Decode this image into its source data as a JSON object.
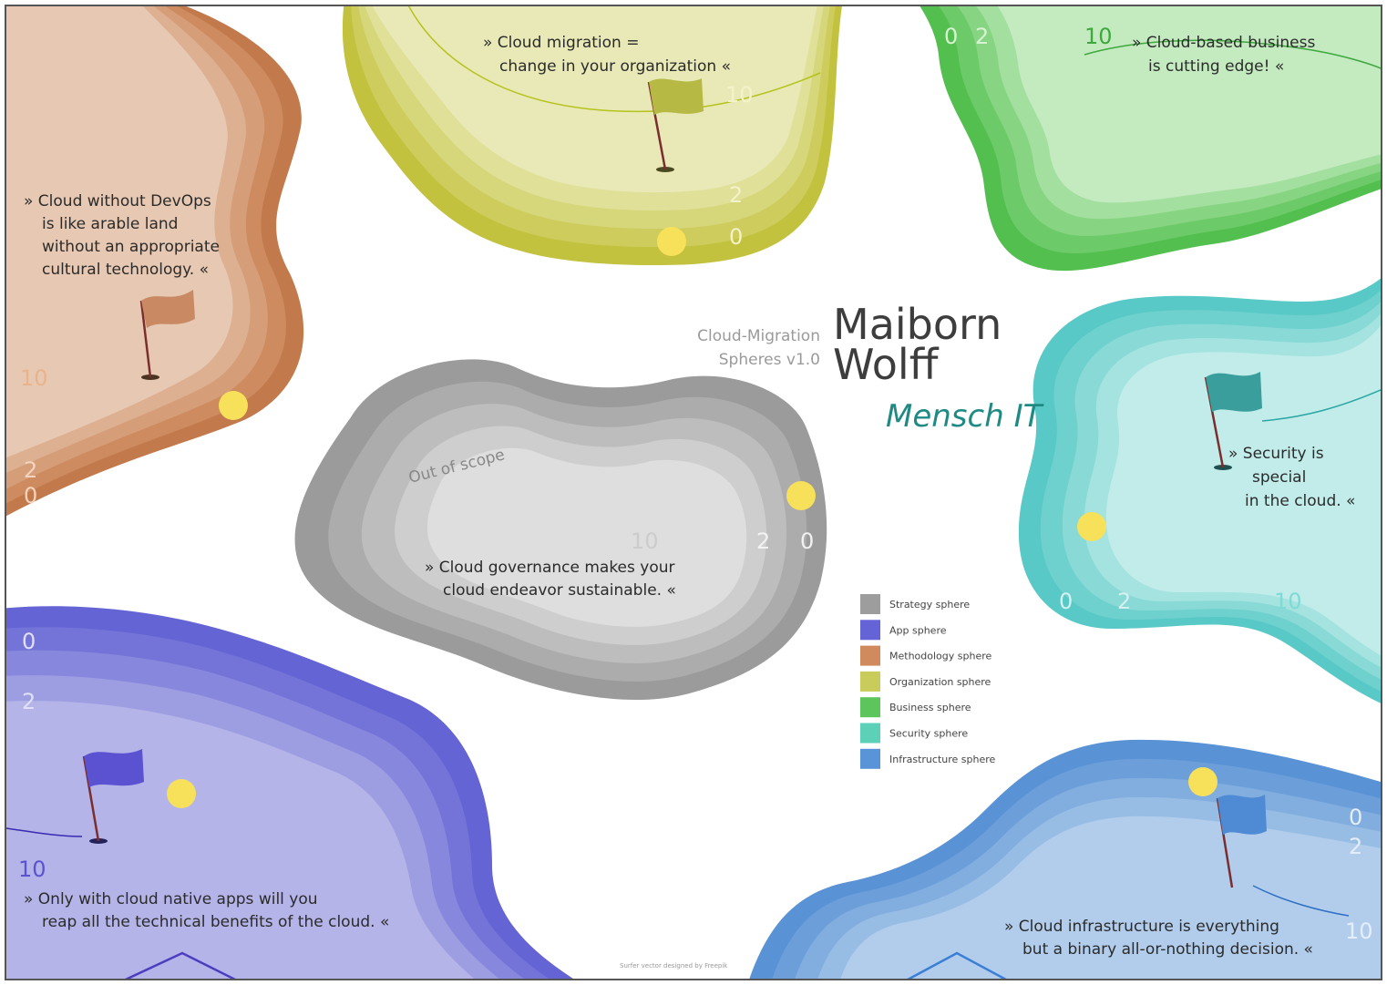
{
  "title": {
    "sub_line1": "Cloud-Migration",
    "sub_line2": "Spheres v1.0",
    "brand_line1": "Maiborn",
    "brand_line2": "Wolff",
    "tagline": "Mensch IT"
  },
  "spheres": {
    "methodology": {
      "color": "#c8845a",
      "quote": [
        "» Cloud without DevOps",
        "is like arable land",
        "without an appropriate",
        "cultural technology.  «"
      ],
      "labels": [
        "10",
        "2",
        "0"
      ]
    },
    "organization": {
      "color": "#c2c940",
      "quote": [
        "» Cloud migration =",
        "change in your organization    «"
      ],
      "labels": [
        "10",
        "2",
        "0"
      ]
    },
    "business": {
      "color": "#55c255",
      "quote": [
        "» Cloud-based business",
        "is cutting edge!  «"
      ],
      "labels": [
        "0",
        "2",
        "10"
      ]
    },
    "security": {
      "color": "#5bcdc6",
      "quote": [
        "» Security is",
        "special",
        "in the cloud.  «"
      ],
      "labels": [
        "0",
        "2",
        "10"
      ]
    },
    "strategy": {
      "color": "#9d9d9d",
      "quote": [
        "» Cloud governance makes your",
        "cloud endeavor sustainable.    «"
      ],
      "labels": [
        "10",
        "2",
        "0"
      ],
      "note": "Out of scope"
    },
    "app": {
      "color": "#6464d6",
      "quote": [
        "» Only with cloud native apps will you",
        "reap all the technical benefits of the cloud.        «"
      ],
      "labels": [
        "0",
        "2",
        "10"
      ]
    },
    "infrastructure": {
      "color": "#5a94d8",
      "quote": [
        "» Cloud infrastructure is everything",
        "but a binary all-or-nothing decision.     «"
      ],
      "labels": [
        "0",
        "2",
        "10"
      ]
    }
  },
  "legend": [
    {
      "label": "Strategy sphere",
      "color": "#9d9d9d"
    },
    {
      "label": "App sphere",
      "color": "#6464d6"
    },
    {
      "label": "Methodology sphere",
      "color": "#d08a5e"
    },
    {
      "label": "Organization sphere",
      "color": "#c9cb5a"
    },
    {
      "label": "Business sphere",
      "color": "#5cc65c"
    },
    {
      "label": "Security sphere",
      "color": "#5dd0b8"
    },
    {
      "label": "Infrastructure sphere",
      "color": "#5a94d8"
    }
  ],
  "footer": "Surfer vector designed by Freepik"
}
